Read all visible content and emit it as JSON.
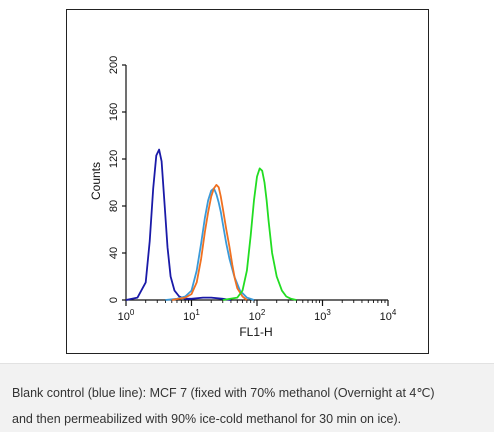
{
  "chart_data": {
    "type": "line",
    "xlabel": "FL1-H",
    "ylabel": "Counts",
    "x_scale": "log",
    "xlim": [
      1,
      10000
    ],
    "ylim": [
      0,
      200
    ],
    "x_ticks": [
      {
        "value": 1,
        "base": "10",
        "exp": "0"
      },
      {
        "value": 10,
        "base": "10",
        "exp": "1"
      },
      {
        "value": 100,
        "base": "10",
        "exp": "2"
      },
      {
        "value": 1000,
        "base": "10",
        "exp": "3"
      },
      {
        "value": 10000,
        "base": "10",
        "exp": "4"
      }
    ],
    "y_ticks": [
      "0",
      "40",
      "80",
      "120",
      "160",
      "200"
    ],
    "grid": false,
    "legend": "none",
    "series": [
      {
        "color": "#1a1aa8",
        "x": [
          1,
          1.5,
          2,
          2.3,
          2.6,
          2.9,
          3.2,
          3.5,
          3.9,
          4.3,
          4.8,
          5.5,
          6.5,
          8,
          10,
          15,
          20,
          30,
          40
        ],
        "y": [
          0,
          2,
          15,
          50,
          95,
          123,
          128,
          118,
          80,
          45,
          20,
          8,
          3,
          1,
          1,
          2,
          2,
          1,
          0
        ]
      },
      {
        "color": "#3a9ad9",
        "x": [
          4,
          6,
          8,
          10,
          12,
          14,
          16,
          18,
          20,
          22,
          24,
          26,
          28,
          30,
          34,
          38,
          45,
          55,
          70,
          90
        ],
        "y": [
          0,
          1,
          3,
          8,
          25,
          48,
          70,
          85,
          93,
          95,
          90,
          83,
          75,
          65,
          48,
          35,
          20,
          8,
          2,
          0
        ]
      },
      {
        "color": "#f07020",
        "x": [
          5,
          8,
          10,
          12,
          14,
          16,
          18,
          20,
          22,
          24,
          26,
          28,
          30,
          34,
          38,
          42,
          46,
          50,
          60,
          70
        ],
        "y": [
          0,
          2,
          5,
          15,
          35,
          58,
          75,
          88,
          95,
          98,
          96,
          88,
          78,
          60,
          45,
          30,
          18,
          10,
          3,
          0
        ]
      },
      {
        "color": "#22dd22",
        "x": [
          30,
          50,
          60,
          70,
          80,
          90,
          100,
          110,
          120,
          130,
          140,
          150,
          170,
          200,
          240,
          280,
          330,
          400
        ],
        "y": [
          0,
          2,
          8,
          25,
          55,
          85,
          105,
          112,
          110,
          100,
          85,
          68,
          40,
          20,
          8,
          3,
          1,
          0
        ]
      }
    ]
  },
  "caption": {
    "line1": "Blank control (blue line): MCF 7 (fixed with 70% methanol (Overnight at 4℃)",
    "line2": "and then permeabilized with 90% ice-cold methanol for 30 min on ice)."
  }
}
